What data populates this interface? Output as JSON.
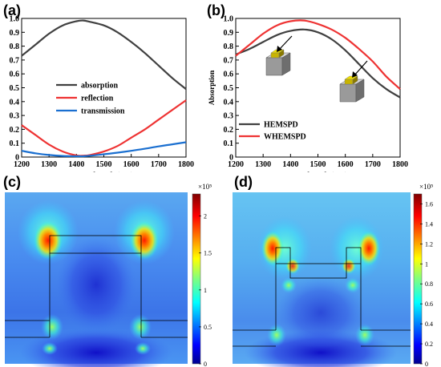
{
  "panels": [
    {
      "label": "(a)"
    },
    {
      "label": "(b)"
    },
    {
      "label": "(c)"
    },
    {
      "label": "(d)"
    }
  ],
  "chart_data": [
    {
      "panel": "(a)",
      "type": "line",
      "xlabel": "Wavelength/(nm)",
      "ylabel": "",
      "xlim": [
        1200,
        1800
      ],
      "ylim": [
        0,
        1.0
      ],
      "x_ticks": [
        1200,
        1300,
        1400,
        1500,
        1600,
        1700,
        1800
      ],
      "y_ticks": [
        0,
        0.1,
        0.2,
        0.3,
        0.4,
        0.5,
        0.6,
        0.7,
        0.8,
        0.9,
        1.0
      ],
      "y_tick_labels": [
        "0",
        "0.1",
        "0.2",
        "0.3",
        "0.4",
        "0.5",
        "0.6",
        "0.7",
        "0.8",
        "0.9",
        "1.0"
      ],
      "grid": false,
      "legend_position": "center",
      "x": [
        1200,
        1250,
        1300,
        1350,
        1400,
        1425,
        1450,
        1500,
        1550,
        1600,
        1650,
        1700,
        1750,
        1800
      ],
      "series": [
        {
          "name": "absorption",
          "color": "#404040",
          "values": [
            0.73,
            0.81,
            0.89,
            0.95,
            0.98,
            0.985,
            0.975,
            0.95,
            0.9,
            0.83,
            0.75,
            0.66,
            0.57,
            0.49
          ]
        },
        {
          "name": "reflection",
          "color": "#ee3333",
          "values": [
            0.23,
            0.16,
            0.09,
            0.04,
            0.012,
            0.01,
            0.015,
            0.04,
            0.08,
            0.14,
            0.2,
            0.27,
            0.34,
            0.41
          ]
        },
        {
          "name": "transmission",
          "color": "#1a6fd0",
          "values": [
            0.045,
            0.027,
            0.015,
            0.008,
            0.006,
            0.006,
            0.01,
            0.02,
            0.032,
            0.045,
            0.06,
            0.077,
            0.092,
            0.107
          ]
        }
      ]
    },
    {
      "panel": "(b)",
      "type": "line",
      "xlabel": "Wavelength/(nm)",
      "ylabel": "Absorption",
      "xlim": [
        1200,
        1800
      ],
      "ylim": [
        0,
        1.0
      ],
      "x_ticks": [
        1200,
        1300,
        1400,
        1500,
        1600,
        1700,
        1800
      ],
      "y_ticks": [
        0,
        0.1,
        0.2,
        0.3,
        0.4,
        0.5,
        0.6,
        0.7,
        0.8,
        0.9,
        1.0
      ],
      "y_tick_labels": [
        "0",
        "0.1",
        "0.2",
        "0.3",
        "0.4",
        "0.5",
        "0.6",
        "0.7",
        "0.8",
        "0.9",
        "1.0"
      ],
      "grid": false,
      "legend_position": "bottom-left",
      "x": [
        1200,
        1250,
        1300,
        1350,
        1400,
        1450,
        1500,
        1550,
        1600,
        1650,
        1700,
        1750,
        1800
      ],
      "series": [
        {
          "name": "HEMSPD",
          "color": "#404040",
          "values": [
            0.74,
            0.78,
            0.83,
            0.88,
            0.91,
            0.92,
            0.9,
            0.85,
            0.77,
            0.67,
            0.57,
            0.49,
            0.43
          ]
        },
        {
          "name": "WHEMSPD",
          "color": "#ee3333",
          "values": [
            0.73,
            0.81,
            0.89,
            0.95,
            0.98,
            0.985,
            0.96,
            0.92,
            0.86,
            0.78,
            0.69,
            0.58,
            0.49
          ]
        }
      ]
    },
    {
      "panel": "(c)",
      "type": "heatmap",
      "colorbar_exponent": "×10⁵",
      "colorbar_ticks": [
        "2",
        "1.5",
        "1",
        "0.5",
        "0"
      ],
      "colorbar_values": [
        2,
        1.5,
        1,
        0.5,
        0
      ],
      "colorbar_max": 2.3
    },
    {
      "panel": "(d)",
      "type": "heatmap",
      "colorbar_exponent": "×10⁵",
      "colorbar_ticks": [
        "1.6",
        "1.4",
        "1.2",
        "1",
        "0.8",
        "0.6",
        "0.4",
        "0.2",
        "0"
      ],
      "colorbar_values": [
        1.6,
        1.4,
        1.2,
        1.0,
        0.8,
        0.6,
        0.4,
        0.2,
        0
      ],
      "colorbar_max": 1.7
    }
  ]
}
